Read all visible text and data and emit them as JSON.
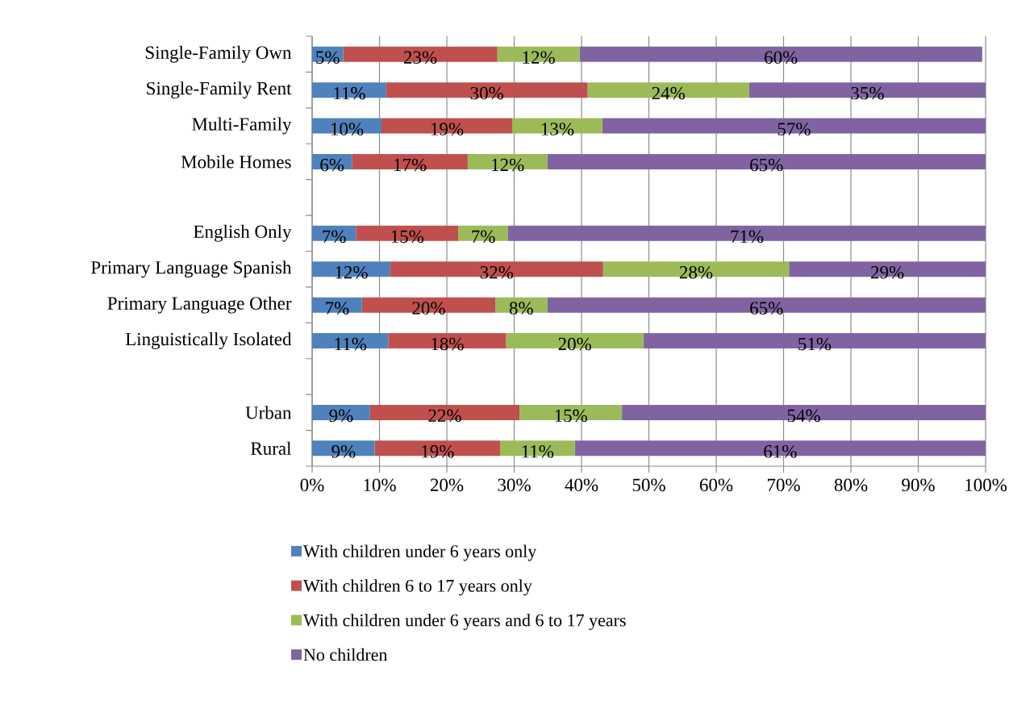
{
  "chart_data": {
    "type": "bar",
    "orientation": "horizontal",
    "stacked": true,
    "categories": [
      "Single-Family Own",
      "Single-Family Rent",
      "Multi-Family",
      "Mobile Homes",
      null,
      "English Only",
      "Primary Language Spanish",
      "Primary Language Other",
      "Linguistically Isolated",
      null,
      "Urban",
      "Rural"
    ],
    "series": [
      {
        "name": "With children under 6 years only",
        "color": "#4f81bd",
        "values": [
          4.6,
          11.0,
          10.3,
          5.9,
          null,
          6.5,
          11.6,
          7.4,
          11.3,
          null,
          8.6,
          9.3
        ],
        "value_labels": [
          "5%",
          "11%",
          "10%",
          "6%",
          null,
          "7%",
          "12%",
          "7%",
          "11%",
          null,
          "9%",
          "9%"
        ]
      },
      {
        "name": "With children 6 to 17 years only",
        "color": "#c0504d",
        "values": [
          22.9,
          29.9,
          19.4,
          17.2,
          null,
          15.2,
          31.6,
          19.8,
          17.5,
          null,
          22.2,
          18.6
        ],
        "value_labels": [
          "23%",
          "30%",
          "19%",
          "17%",
          null,
          "15%",
          "32%",
          "20%",
          "18%",
          null,
          "22%",
          "19%"
        ]
      },
      {
        "name": "With children under 6 years and 6 to 17 years",
        "color": "#9bbb59",
        "values": [
          12.2,
          24.0,
          13.4,
          11.8,
          null,
          7.4,
          27.6,
          7.7,
          20.4,
          null,
          15.2,
          11.1
        ],
        "value_labels": [
          "12%",
          "24%",
          "13%",
          "12%",
          null,
          "7%",
          "28%",
          "8%",
          "20%",
          null,
          "15%",
          "11%"
        ]
      },
      {
        "name": "No children",
        "color": "#8064a2",
        "values": [
          59.8,
          35.1,
          56.9,
          65.1,
          null,
          70.9,
          29.2,
          65.1,
          50.8,
          null,
          54.0,
          61.0
        ],
        "value_labels": [
          "60%",
          "35%",
          "57%",
          "65%",
          null,
          "71%",
          "29%",
          "65%",
          "51%",
          null,
          "54%",
          "61%"
        ]
      }
    ],
    "xlim": [
      0,
      100
    ],
    "xticks": [
      {
        "value": 0,
        "label": "0%"
      },
      {
        "value": 10,
        "label": "10%"
      },
      {
        "value": 20,
        "label": "20%"
      },
      {
        "value": 30,
        "label": "30%"
      },
      {
        "value": 40,
        "label": "40%"
      },
      {
        "value": 50,
        "label": "50%"
      },
      {
        "value": 60,
        "label": "60%"
      },
      {
        "value": 70,
        "label": "70%"
      },
      {
        "value": 80,
        "label": "80%"
      },
      {
        "value": 90,
        "label": "90%"
      },
      {
        "value": 100,
        "label": "100%"
      }
    ],
    "grid": "x",
    "legend": "bottom"
  }
}
